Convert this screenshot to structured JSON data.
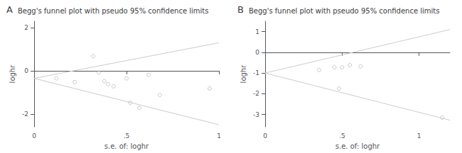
{
  "chart_data": [
    {
      "type": "scatter",
      "annotations": [
        "A"
      ],
      "title": "Begg's funnel plot with pseudo 95% confidence limits",
      "xlabel": "s.e. of: loghr",
      "ylabel": "loghr",
      "xlim": [
        0,
        1.0
      ],
      "ylim": [
        -2.6,
        2.3
      ],
      "xticks": [
        0,
        {
          "value": 0.5,
          "label": ".5"
        },
        1
      ],
      "yticks": [
        -2,
        0,
        2
      ],
      "grid": false,
      "series": [
        {
          "type": "line",
          "color": "#cccccc",
          "line_style": "solid",
          "x": [
            0,
            1.0
          ],
          "values": [
            -0.35,
            1.3
          ]
        },
        {
          "type": "line",
          "color": "#cccccc",
          "line_style": "solid",
          "x": [
            0,
            1.0
          ],
          "values": [
            -0.35,
            -2.5
          ]
        },
        {
          "type": "scatter",
          "color": "#b8bfbf",
          "marker": "open circle",
          "x": [
            0.12,
            0.22,
            0.32,
            0.35,
            0.38,
            0.4,
            0.43,
            0.5,
            0.52,
            0.57,
            0.62,
            0.68,
            0.95
          ],
          "values": [
            -0.35,
            -0.52,
            0.68,
            -0.08,
            -0.48,
            -0.62,
            -0.72,
            -0.35,
            -1.48,
            -1.72,
            -0.18,
            -1.12,
            -0.82
          ]
        }
      ]
    },
    {
      "type": "scatter",
      "annotations": [
        "B"
      ],
      "title": "Begg's funnel plot with pseudo 95% confidence limits",
      "xlabel": "s.e. of: loghr",
      "ylabel": "loghr",
      "xlim": [
        0,
        1.2
      ],
      "ylim": [
        -3.6,
        1.5
      ],
      "xticks": [
        0,
        {
          "value": 0.5,
          "label": ".5"
        },
        1
      ],
      "yticks": [
        -3,
        -2,
        -1,
        0,
        1
      ],
      "grid": false,
      "series": [
        {
          "type": "line",
          "color": "#cccccc",
          "line_style": "solid",
          "x": [
            0,
            1.2
          ],
          "values": [
            -1.0,
            1.1
          ]
        },
        {
          "type": "line",
          "color": "#cccccc",
          "line_style": "solid",
          "x": [
            0,
            1.2
          ],
          "values": [
            -1.0,
            -3.28
          ]
        },
        {
          "type": "scatter",
          "color": "#b8bfbf",
          "marker": "open circle",
          "x": [
            0.35,
            0.45,
            0.48,
            0.5,
            0.55,
            0.62,
            1.15
          ],
          "values": [
            -0.85,
            -0.72,
            -1.75,
            -0.72,
            -0.62,
            -0.68,
            -3.15
          ]
        }
      ]
    }
  ]
}
